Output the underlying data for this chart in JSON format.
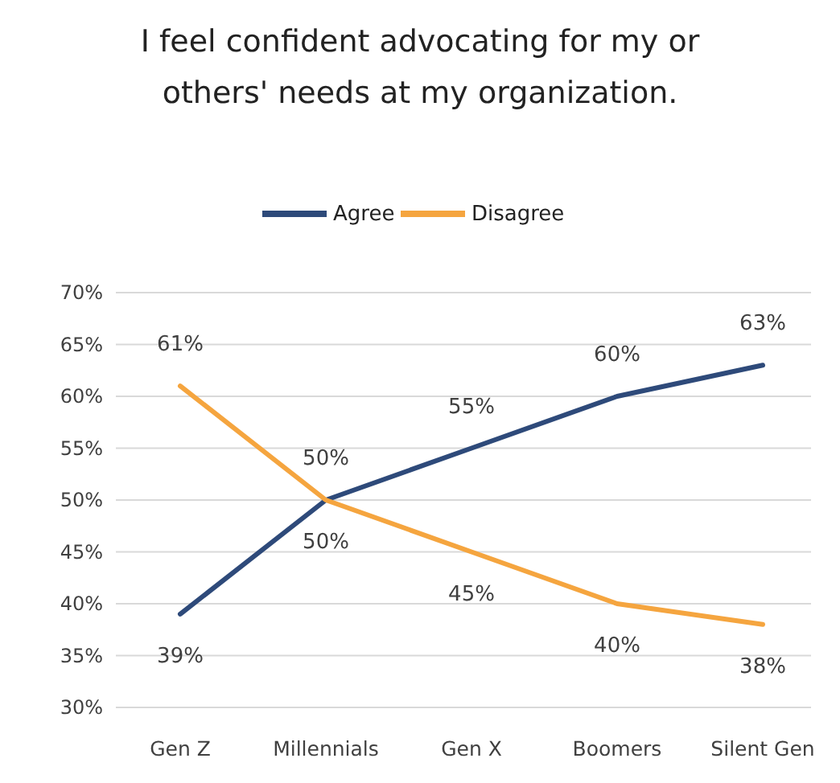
{
  "chart_data": {
    "type": "line",
    "title": "I feel confident advocating for my or others' needs at my organization.",
    "categories": [
      "Gen Z",
      "Millennials",
      "Gen X",
      "Boomers",
      "Silent Gen"
    ],
    "series": [
      {
        "name": "Agree",
        "color": "#2e4a7a",
        "values": [
          39,
          50,
          55,
          60,
          63
        ],
        "value_labels": [
          "39%",
          "50%",
          "55%",
          "60%",
          "63%"
        ]
      },
      {
        "name": "Disagree",
        "color": "#f5a53f",
        "values": [
          61,
          50,
          45,
          40,
          38
        ],
        "value_labels": [
          "61%",
          "50%",
          "45%",
          "40%",
          "38%"
        ]
      }
    ],
    "ylim": [
      30,
      70
    ],
    "yticks": [
      {
        "value": 30,
        "label": "30%"
      },
      {
        "value": 35,
        "label": "35%"
      },
      {
        "value": 40,
        "label": "40%"
      },
      {
        "value": 45,
        "label": "45%"
      },
      {
        "value": 50,
        "label": "50%"
      },
      {
        "value": 55,
        "label": "55%"
      },
      {
        "value": 60,
        "label": "60%"
      },
      {
        "value": 65,
        "label": "65%"
      },
      {
        "value": 70,
        "label": "70%"
      }
    ],
    "grid": "y",
    "legend": "top",
    "marker": "none",
    "line_style": "solid"
  }
}
